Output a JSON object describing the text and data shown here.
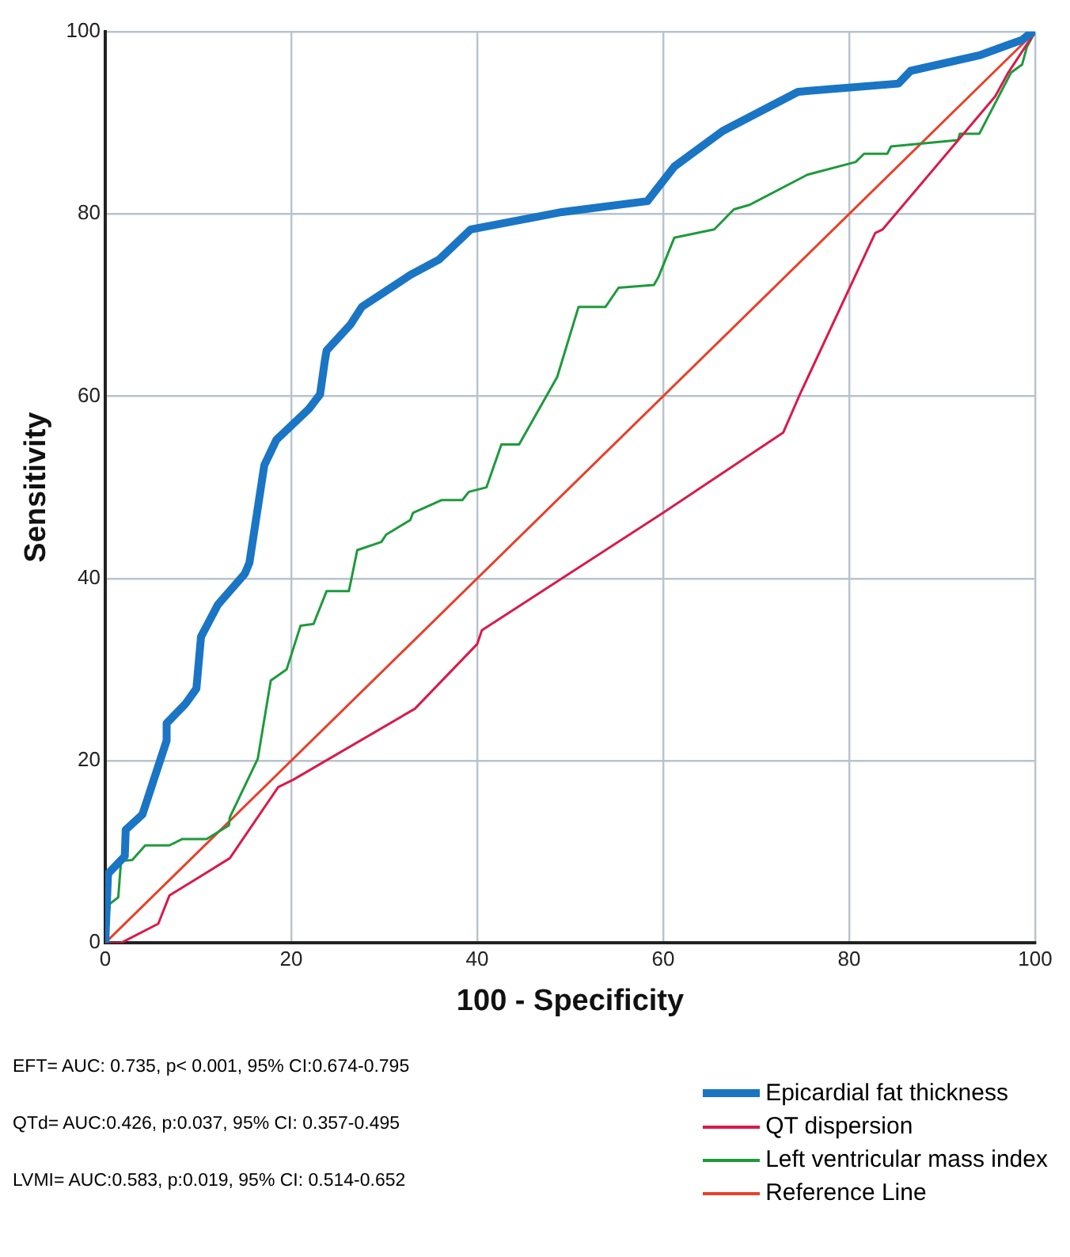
{
  "chart_data": {
    "type": "line",
    "xlabel": "100 - Specificity",
    "ylabel": "Sensitivity",
    "xlim": [
      0,
      100
    ],
    "ylim": [
      0,
      100
    ],
    "xticks": [
      0,
      20,
      40,
      60,
      80,
      100
    ],
    "yticks": [
      0,
      20,
      40,
      60,
      80,
      100
    ],
    "grid": true,
    "legend": "bottom right",
    "annotations": [
      "EFT=  AUC: 0.735, p< 0.001, 95% CI:0.674-0.795",
      "QTd= AUC:0.426, p:0.037,  95% CI: 0.357-0.495",
      "LVMI= AUC:0.583, p:0.019,  95% CI: 0.514-0.652"
    ],
    "series": [
      {
        "name": "Epicardial fat thickness",
        "color": "#1a75c4",
        "x": [
          0,
          0.3,
          2.1,
          2.2,
          4.0,
          6.6,
          6.6,
          8.6,
          9.8,
          10.3,
          12.1,
          15.0,
          15.5,
          17.1,
          18.4,
          21.9,
          23.1,
          23.6,
          23.8,
          26.4,
          27.6,
          32.8,
          35.9,
          39.3,
          49.1,
          58.3,
          61.2,
          66.4,
          74.5,
          85.3,
          86.6,
          94.0,
          98.6,
          99.7,
          100
        ],
        "values": [
          0,
          7.6,
          9.5,
          12.4,
          14.1,
          22.2,
          24.1,
          26.2,
          27.9,
          33.6,
          37.1,
          40.5,
          41.7,
          52.4,
          55.2,
          58.6,
          60.2,
          63.8,
          65.0,
          67.9,
          69.8,
          73.3,
          75.0,
          78.3,
          80.2,
          81.4,
          85.2,
          89.1,
          93.4,
          94.3,
          95.7,
          97.4,
          99.1,
          100,
          100
        ]
      },
      {
        "name": "QT dispersion",
        "color": "#d81b4a",
        "x": [
          0,
          1.7,
          5.7,
          6.9,
          13.4,
          18.6,
          20.2,
          33.3,
          40.0,
          40.5,
          49.1,
          60.0,
          72.9,
          74.7,
          82.8,
          83.6,
          95.7,
          97.1,
          100
        ],
        "values": [
          0,
          0,
          2.1,
          5.2,
          9.3,
          17.1,
          17.9,
          25.7,
          32.8,
          34.3,
          40.0,
          47.2,
          56.0,
          60.2,
          77.9,
          78.3,
          92.9,
          95.5,
          100
        ]
      },
      {
        "name": "Left ventricular mass index",
        "color": "#1e9a3c",
        "x": [
          0,
          0.5,
          1.4,
          1.7,
          2.9,
          4.3,
          6.9,
          8.3,
          10.9,
          13.3,
          13.4,
          16.4,
          17.8,
          19.5,
          21.0,
          22.4,
          23.8,
          26.2,
          27.1,
          29.7,
          30.2,
          32.8,
          33.1,
          36.2,
          38.4,
          39.1,
          41.0,
          42.6,
          44.5,
          48.6,
          50.9,
          53.8,
          55.2,
          59.0,
          59.5,
          61.2,
          65.5,
          67.6,
          69.3,
          75.5,
          80.7,
          81.6,
          84.1,
          84.5,
          91.7,
          91.9,
          94.0,
          97.4,
          98.6,
          99.1,
          100
        ],
        "values": [
          0,
          4.3,
          5.0,
          9.0,
          9.1,
          10.7,
          10.7,
          11.4,
          11.4,
          12.9,
          13.8,
          20.2,
          28.8,
          30.0,
          34.8,
          35.0,
          38.6,
          38.6,
          43.1,
          44.0,
          44.8,
          46.4,
          47.2,
          48.6,
          48.6,
          49.5,
          50.0,
          54.7,
          54.7,
          62.1,
          69.8,
          69.8,
          71.9,
          72.2,
          73.1,
          77.4,
          78.3,
          80.5,
          81.0,
          84.3,
          85.7,
          86.6,
          86.6,
          87.4,
          88.1,
          88.8,
          88.8,
          95.5,
          96.4,
          98.3,
          100
        ]
      },
      {
        "name": "Reference Line",
        "color": "#e8402a",
        "x": [
          0,
          100
        ],
        "values": [
          0,
          100
        ]
      }
    ]
  }
}
